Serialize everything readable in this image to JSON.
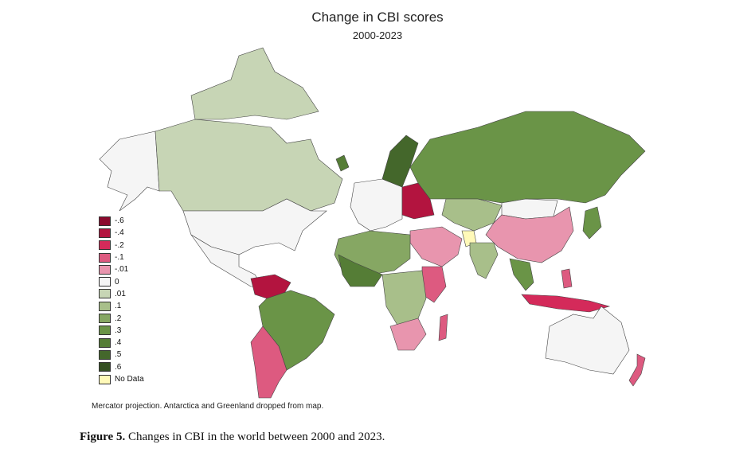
{
  "chart_data": {
    "type": "choropleth",
    "title": "Change in CBI scores",
    "subtitle": "2000-2023",
    "projection": "Mercator",
    "legend": {
      "placement": "bottom-left",
      "entries": [
        {
          "label": "-.6",
          "color": "#8b0a2e"
        },
        {
          "label": "-.4",
          "color": "#b3143f"
        },
        {
          "label": "-.2",
          "color": "#d42a5a"
        },
        {
          "label": "-.1",
          "color": "#dd5a80"
        },
        {
          "label": "-.01",
          "color": "#e895ae"
        },
        {
          "label": "0",
          "color": "#f5f5f5"
        },
        {
          "label": ".01",
          "color": "#c7d5b5"
        },
        {
          "label": ".1",
          "color": "#a8bf8a"
        },
        {
          "label": ".2",
          "color": "#86a763"
        },
        {
          "label": ".3",
          "color": "#6a9447"
        },
        {
          "label": ".4",
          "color": "#557d36"
        },
        {
          "label": ".5",
          "color": "#44672b"
        },
        {
          "label": ".6",
          "color": "#344f22"
        },
        {
          "label": "No Data",
          "color": "#fff9b8"
        }
      ]
    },
    "note": "Mercator projection. Antarctica and Greenland dropped from map."
  },
  "caption": {
    "label": "Figure 5.",
    "text": " Changes in CBI in the world between 2000 and 2023."
  }
}
